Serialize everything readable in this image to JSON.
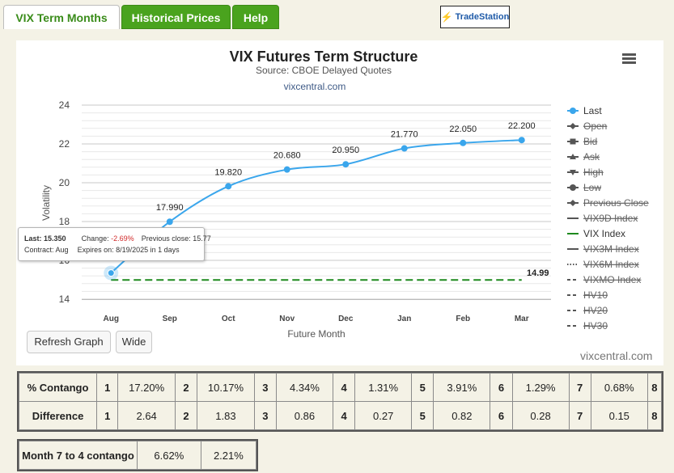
{
  "tabs": [
    {
      "label": "VIX Term Months",
      "active": true
    },
    {
      "label": "Historical Prices",
      "active": false
    },
    {
      "label": "Help",
      "active": false
    }
  ],
  "logo": {
    "text": "TradeStation"
  },
  "colors": {
    "series": "#3aa6ec",
    "vix": "#1e8a1e",
    "tab_green": "#4aa31e"
  },
  "chart_data": {
    "type": "line",
    "title": "VIX Futures Term Structure",
    "subtitle": "Source: CBOE Delayed Quotes",
    "subtitle2": "vixcentral.com",
    "xlabel": "Future Month",
    "ylabel": "Volatility",
    "categories": [
      "Aug",
      "Sep",
      "Oct",
      "Nov",
      "Dec",
      "Jan",
      "Feb",
      "Mar"
    ],
    "ylim": [
      14,
      24
    ],
    "yticks": [
      "14",
      "16",
      "18",
      "20",
      "22",
      "24"
    ],
    "series": [
      {
        "name": "Last",
        "values": [
          15.35,
          17.99,
          19.82,
          20.68,
          20.95,
          21.77,
          22.05,
          22.2
        ],
        "labels": [
          "",
          "17.990",
          "19.820",
          "20.680",
          "20.950",
          "21.770",
          "22.050",
          "22.200"
        ]
      }
    ],
    "vix_index": {
      "value": 14.99,
      "label": "14.99"
    },
    "legend_position": "right",
    "legend": [
      {
        "name": "Last",
        "active": true,
        "symbol": "circle"
      },
      {
        "name": "Open",
        "active": false,
        "symbol": "diamond"
      },
      {
        "name": "Bid",
        "active": false,
        "symbol": "square"
      },
      {
        "name": "Ask",
        "active": false,
        "symbol": "triangle"
      },
      {
        "name": "High",
        "active": false,
        "symbol": "triangle-down"
      },
      {
        "name": "Low",
        "active": false,
        "symbol": "circle"
      },
      {
        "name": "Previous Close",
        "active": false,
        "symbol": "diamond"
      },
      {
        "name": "VIX9D Index",
        "active": false,
        "symbol": "line"
      },
      {
        "name": "VIX Index",
        "active": true,
        "symbol": "line"
      },
      {
        "name": "VIX3M Index",
        "active": false,
        "symbol": "line"
      },
      {
        "name": "VIX6M Index",
        "active": false,
        "symbol": "dotted"
      },
      {
        "name": "VIXMO Index",
        "active": false,
        "symbol": "dashed"
      },
      {
        "name": "HV10",
        "active": false,
        "symbol": "dashed"
      },
      {
        "name": "HV20",
        "active": false,
        "symbol": "dashed"
      },
      {
        "name": "HV30",
        "active": false,
        "symbol": "dashed"
      }
    ],
    "grid": true,
    "tooltip": {
      "last_label": "Last:",
      "last_value": "15.350",
      "change_label": "Change:",
      "change_value": "-2.69%",
      "prev_label": "Previous close:",
      "prev_value": "15.77",
      "contract_label": "Contract:",
      "contract_value": "Aug",
      "expires_text": "Expires on: 8/19/2025 in 1 days"
    },
    "credit": "vixcentral.com"
  },
  "buttons": {
    "refresh": "Refresh Graph",
    "wide": "Wide"
  },
  "contango_table": {
    "rows": [
      {
        "header": "% Contango",
        "cells": [
          "1",
          "17.20%",
          "2",
          "10.17%",
          "3",
          "4.34%",
          "4",
          "1.31%",
          "5",
          "3.91%",
          "6",
          "1.29%",
          "7",
          "0.68%",
          "8"
        ]
      },
      {
        "header": "Difference",
        "cells": [
          "1",
          "2.64",
          "2",
          "1.83",
          "3",
          "0.86",
          "4",
          "0.27",
          "5",
          "0.82",
          "6",
          "0.28",
          "7",
          "0.15",
          "8"
        ]
      }
    ]
  },
  "month_table": {
    "header": "Month 7 to 4 contango",
    "values": [
      "6.62%",
      "2.21%"
    ]
  }
}
